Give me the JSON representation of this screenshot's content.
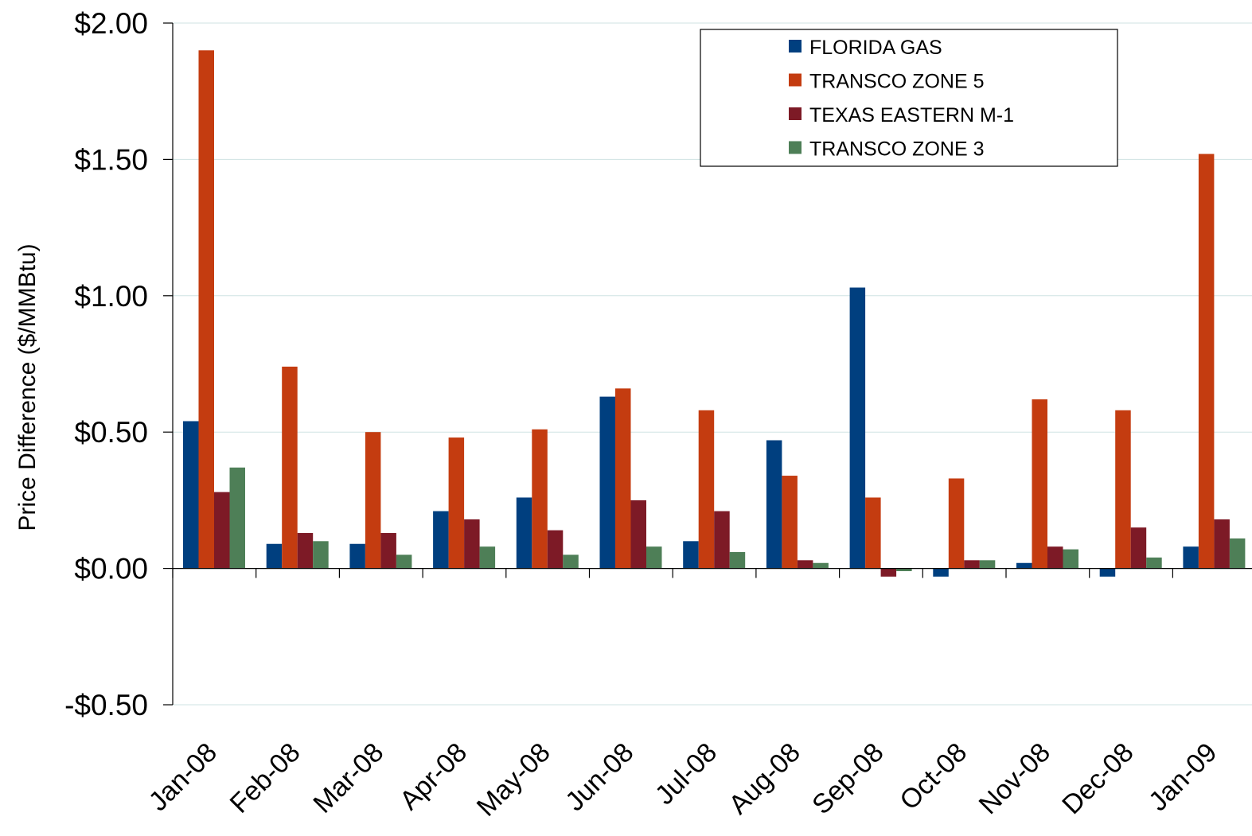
{
  "chart_data": {
    "type": "bar",
    "title": "",
    "xlabel": "",
    "ylabel": "Price Difference  ($/MMBtu)",
    "ylim": [
      -0.5,
      2.0
    ],
    "yticks": [
      2.0,
      1.5,
      1.0,
      0.5,
      0.0,
      -0.5
    ],
    "ytick_labels": [
      "$2.00",
      "$1.50",
      "$1.00",
      "$0.50",
      "$0.00",
      "-$0.50"
    ],
    "grid": true,
    "legend_position": "top-right",
    "categories": [
      "Jan-08",
      "Feb-08",
      "Mar-08",
      "Apr-08",
      "May-08",
      "Jun-08",
      "Jul-08",
      "Aug-08",
      "Sep-08",
      "Oct-08",
      "Nov-08",
      "Dec-08",
      "Jan-09"
    ],
    "series": [
      {
        "name": "FLORIDA GAS",
        "color": "#003f7f",
        "values": [
          0.54,
          0.09,
          0.09,
          0.21,
          0.26,
          0.63,
          0.1,
          0.47,
          1.03,
          -0.03,
          0.02,
          -0.03,
          0.08
        ]
      },
      {
        "name": "TRANSCO ZONE 5",
        "color": "#c43c10",
        "values": [
          1.9,
          0.74,
          0.5,
          0.48,
          0.51,
          0.66,
          0.58,
          0.34,
          0.26,
          0.33,
          0.62,
          0.58,
          1.52
        ]
      },
      {
        "name": "TEXAS EASTERN M-1",
        "color": "#7d1a26",
        "values": [
          0.28,
          0.13,
          0.13,
          0.18,
          0.14,
          0.25,
          0.21,
          0.03,
          -0.03,
          0.03,
          0.08,
          0.15,
          0.18
        ]
      },
      {
        "name": "TRANSCO ZONE 3",
        "color": "#4e7f57",
        "values": [
          0.37,
          0.1,
          0.05,
          0.08,
          0.05,
          0.08,
          0.06,
          0.02,
          -0.01,
          0.03,
          0.07,
          0.04,
          0.11
        ]
      }
    ]
  }
}
